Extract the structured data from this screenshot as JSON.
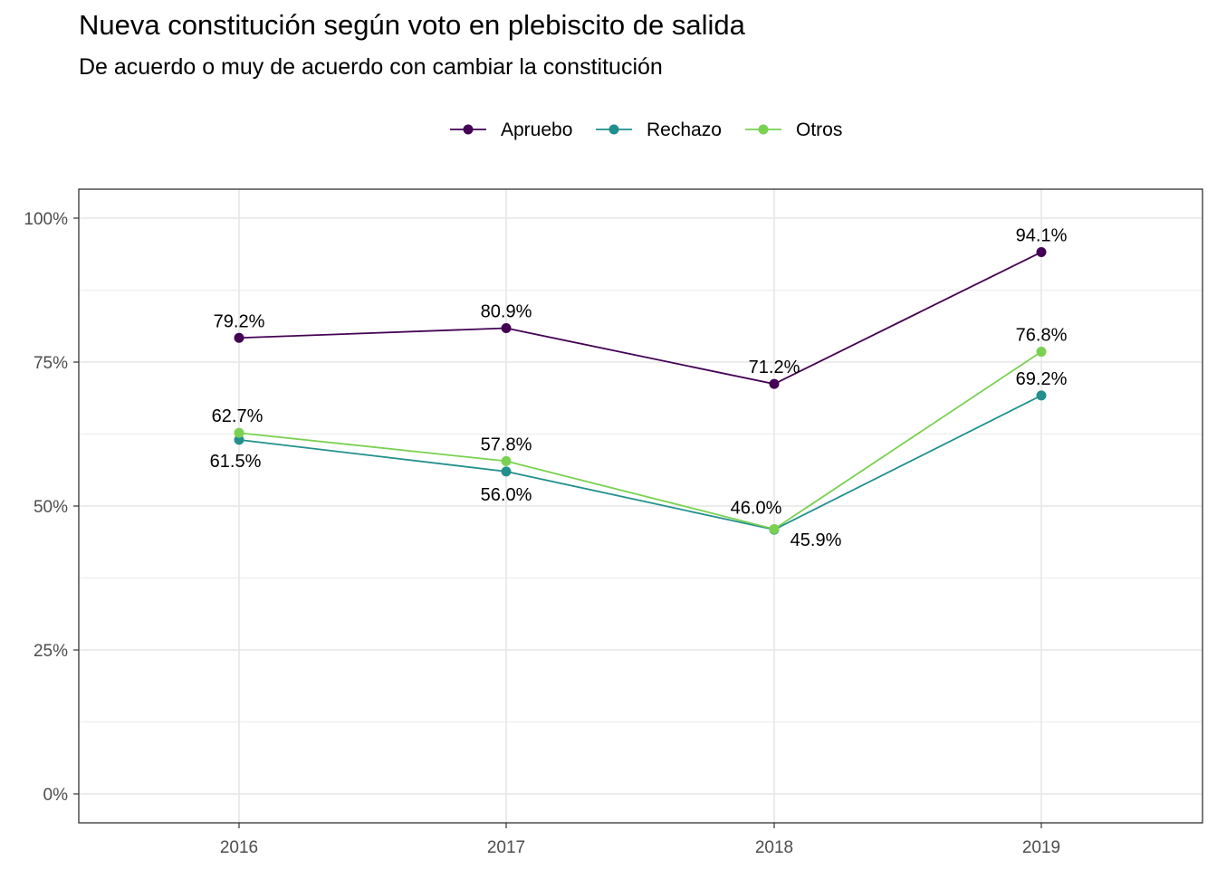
{
  "chart_data": {
    "type": "line",
    "title": "Nueva constitución según voto en plebiscito de salida",
    "subtitle": "De acuerdo o muy de acuerdo con cambiar la constitución",
    "xlabel": "",
    "ylabel": "",
    "x": [
      "2016",
      "2017",
      "2018",
      "2019"
    ],
    "ylim": [
      0,
      100
    ],
    "yticks": [
      0,
      25,
      50,
      75,
      100
    ],
    "ytick_labels": [
      "0%",
      "25%",
      "50%",
      "75%",
      "100%"
    ],
    "grid": true,
    "legend_position": "top",
    "series": [
      {
        "name": "Apruebo",
        "color": "#440154",
        "values": [
          79.2,
          80.9,
          71.2,
          94.1
        ],
        "labels": [
          "79.2%",
          "80.9%",
          "71.2%",
          "94.1%"
        ]
      },
      {
        "name": "Rechazo",
        "color": "#21908C",
        "values": [
          61.5,
          56.0,
          45.9,
          69.2
        ],
        "labels": [
          "61.5%",
          "56.0%",
          "45.9%",
          "69.2%"
        ]
      },
      {
        "name": "Otros",
        "color": "#7AD151",
        "values": [
          62.7,
          57.8,
          46.0,
          76.8
        ],
        "labels": [
          "62.7%",
          "57.8%",
          "46.0%",
          "76.8%"
        ]
      }
    ]
  }
}
